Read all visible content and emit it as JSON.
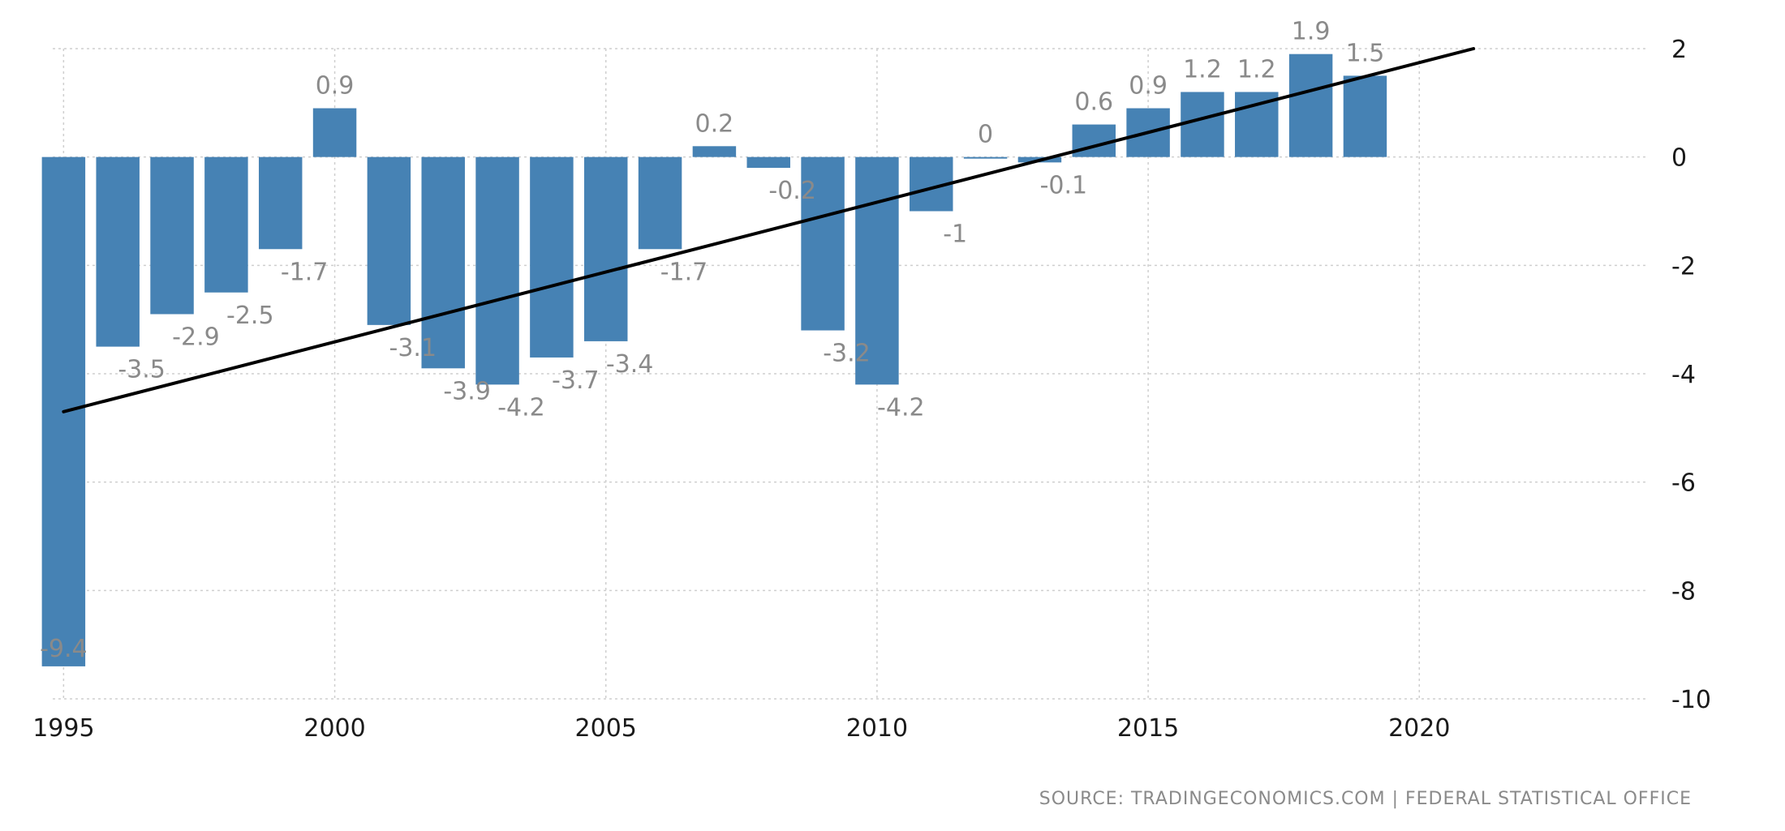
{
  "chart_data": {
    "type": "bar",
    "x": [
      1995,
      1996,
      1997,
      1998,
      1999,
      2000,
      2001,
      2002,
      2003,
      2004,
      2005,
      2006,
      2007,
      2008,
      2009,
      2010,
      2011,
      2012,
      2013,
      2014,
      2015,
      2016,
      2017,
      2018,
      2019
    ],
    "values": [
      -9.4,
      -3.5,
      -2.9,
      -2.5,
      -1.7,
      0.9,
      -3.1,
      -3.9,
      -4.2,
      -3.7,
      -3.4,
      -1.7,
      0.2,
      -0.2,
      -3.2,
      -4.2,
      -1,
      0,
      -0.1,
      0.6,
      0.9,
      1.2,
      1.2,
      1.9,
      1.5
    ],
    "data_labels": [
      "-9.4",
      "-3.5",
      "-2.9",
      "-2.5",
      "-1.7",
      "0.9",
      "-3.1",
      "-3.9",
      "-4.2",
      "-3.7",
      "-3.4",
      "-1.7",
      "0.2",
      "-0.2",
      "-3.2",
      "-4.2",
      "-1",
      "0",
      "-0.1",
      "0.6",
      "0.9",
      "1.2",
      "1.2",
      "1.9",
      "1.5"
    ],
    "trend_line": {
      "x": [
        1995,
        2021
      ],
      "y": [
        -4.7,
        2.0
      ]
    },
    "xlim": [
      1994.8,
      2024.2
    ],
    "ylim": [
      -10,
      2
    ],
    "x_ticks": [
      1995,
      2000,
      2005,
      2010,
      2015,
      2020
    ],
    "x_tick_labels": [
      "1995",
      "2000",
      "2005",
      "2010",
      "2015",
      "2020"
    ],
    "y_ticks": [
      2,
      0,
      -2,
      -4,
      -6,
      -8,
      -10
    ],
    "y_tick_labels": [
      "2",
      "0",
      "-2",
      "-4",
      "-6",
      "-8",
      "-10"
    ],
    "y_axis_position": "right",
    "grid": true,
    "title": "",
    "xlabel": "",
    "ylabel": "",
    "colors": {
      "bar": "#4682b4",
      "trend": "#000000",
      "grid": "#cfcfcf",
      "label": "#8a8a8a"
    }
  },
  "source": "SOURCE: TRADINGECONOMICS.COM | FEDERAL STATISTICAL OFFICE"
}
